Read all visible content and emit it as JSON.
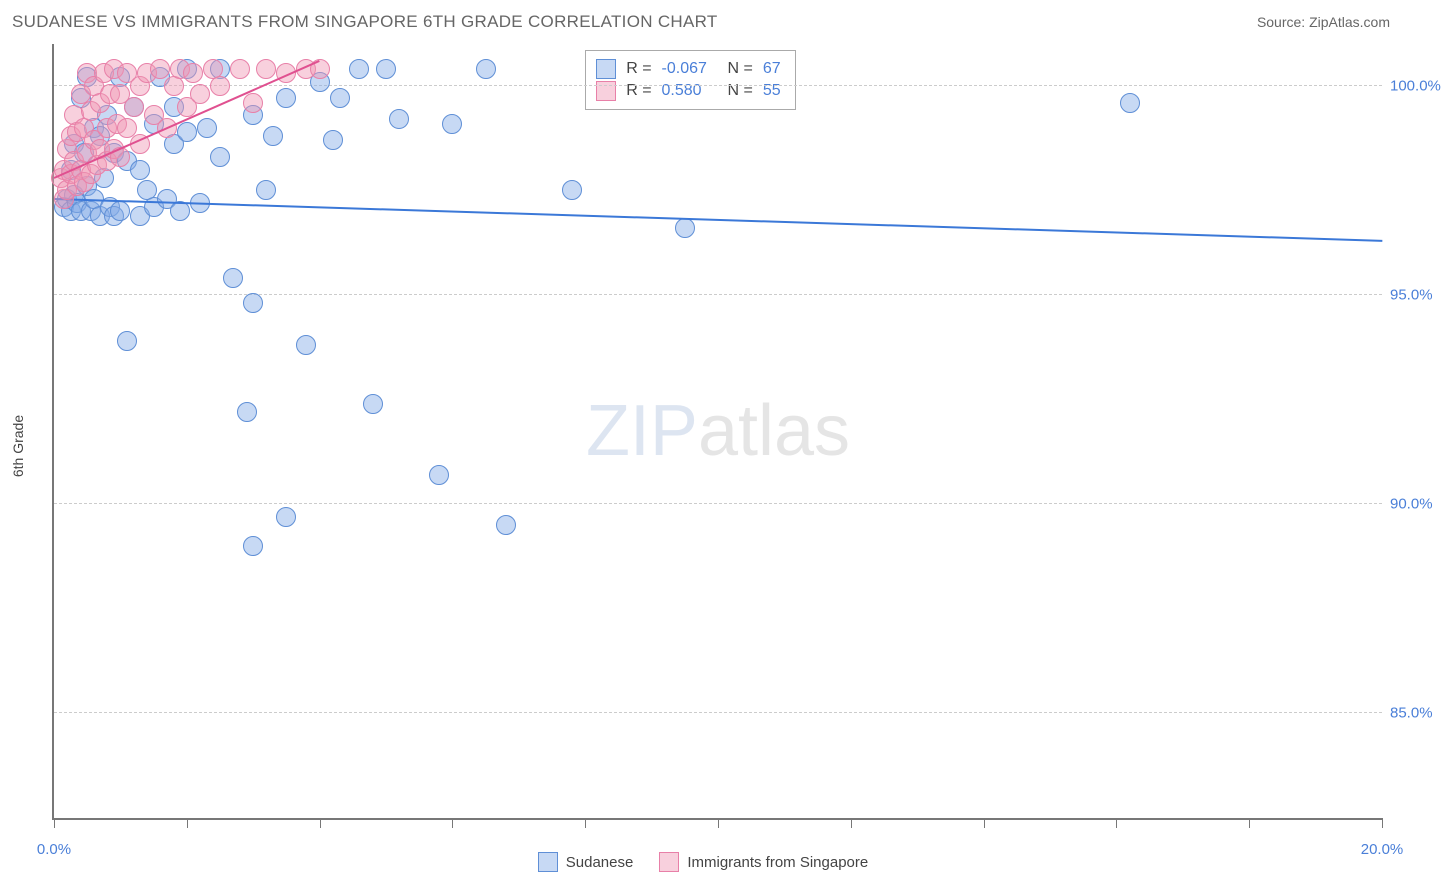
{
  "header": {
    "title": "SUDANESE VS IMMIGRANTS FROM SINGAPORE 6TH GRADE CORRELATION CHART",
    "source": "Source: ZipAtlas.com"
  },
  "chart": {
    "type": "scatter",
    "y_axis_title": "6th Grade",
    "watermark_a": "ZIP",
    "watermark_b": "atlas",
    "background_color": "#ffffff",
    "grid_color": "#cccccc",
    "axis_color": "#777777",
    "tick_label_color": "#4a7fd8",
    "xlim": [
      0,
      20
    ],
    "ylim": [
      82.5,
      101
    ],
    "x_ticks": [
      0,
      2,
      4,
      6,
      8,
      10,
      12,
      14,
      16,
      18,
      20
    ],
    "x_tick_labels": {
      "0": "0.0%",
      "20": "20.0%"
    },
    "y_ticks": [
      85,
      90,
      95,
      100
    ],
    "y_tick_labels": {
      "85": "85.0%",
      "90": "90.0%",
      "95": "95.0%",
      "100": "100.0%"
    },
    "series": [
      {
        "name": "Sudanese",
        "fill": "rgba(130,170,230,0.45)",
        "stroke": "#5f8fd6",
        "marker_radius": 10,
        "r_value": "-0.067",
        "n_value": "67",
        "trend": {
          "x1": 0,
          "y1": 97.3,
          "x2": 20,
          "y2": 96.3,
          "color": "#3b78d8",
          "width": 2
        },
        "points": [
          [
            0.15,
            97.1
          ],
          [
            0.2,
            97.3
          ],
          [
            0.25,
            98.0
          ],
          [
            0.25,
            97.0
          ],
          [
            0.3,
            97.4
          ],
          [
            0.3,
            98.6
          ],
          [
            0.35,
            97.2
          ],
          [
            0.4,
            99.7
          ],
          [
            0.4,
            97.0
          ],
          [
            0.45,
            98.4
          ],
          [
            0.5,
            97.6
          ],
          [
            0.5,
            100.2
          ],
          [
            0.55,
            97.0
          ],
          [
            0.6,
            99.0
          ],
          [
            0.6,
            97.3
          ],
          [
            0.7,
            98.8
          ],
          [
            0.7,
            96.9
          ],
          [
            0.75,
            97.8
          ],
          [
            0.8,
            99.3
          ],
          [
            0.85,
            97.1
          ],
          [
            0.9,
            98.4
          ],
          [
            0.9,
            96.9
          ],
          [
            1.0,
            97.0
          ],
          [
            1.0,
            100.2
          ],
          [
            1.1,
            93.9
          ],
          [
            1.1,
            98.2
          ],
          [
            1.2,
            99.5
          ],
          [
            1.3,
            96.9
          ],
          [
            1.3,
            98.0
          ],
          [
            1.4,
            97.5
          ],
          [
            1.5,
            99.1
          ],
          [
            1.5,
            97.1
          ],
          [
            1.6,
            100.2
          ],
          [
            1.7,
            97.3
          ],
          [
            1.8,
            98.6
          ],
          [
            1.8,
            99.5
          ],
          [
            1.9,
            97.0
          ],
          [
            2.0,
            98.9
          ],
          [
            2.0,
            100.4
          ],
          [
            2.2,
            97.2
          ],
          [
            2.3,
            99.0
          ],
          [
            2.5,
            98.3
          ],
          [
            2.5,
            100.4
          ],
          [
            2.7,
            95.4
          ],
          [
            2.9,
            92.2
          ],
          [
            3.0,
            94.8
          ],
          [
            3.0,
            99.3
          ],
          [
            3.0,
            89.0
          ],
          [
            3.2,
            97.5
          ],
          [
            3.3,
            98.8
          ],
          [
            3.5,
            99.7
          ],
          [
            3.5,
            89.7
          ],
          [
            3.8,
            93.8
          ],
          [
            4.0,
            100.1
          ],
          [
            4.2,
            98.7
          ],
          [
            4.3,
            99.7
          ],
          [
            4.6,
            100.4
          ],
          [
            4.8,
            92.4
          ],
          [
            5.0,
            100.4
          ],
          [
            5.2,
            99.2
          ],
          [
            5.8,
            90.7
          ],
          [
            6.0,
            99.1
          ],
          [
            6.5,
            100.4
          ],
          [
            6.8,
            89.5
          ],
          [
            7.8,
            97.5
          ],
          [
            9.5,
            96.6
          ],
          [
            16.2,
            99.6
          ]
        ]
      },
      {
        "name": "Immigrants from Singapore",
        "fill": "rgba(240,150,180,0.45)",
        "stroke": "#e880a8",
        "marker_radius": 10,
        "r_value": "0.580",
        "n_value": "55",
        "trend": {
          "x1": 0,
          "y1": 97.8,
          "x2": 4.0,
          "y2": 100.6,
          "color": "#e05090",
          "width": 2
        },
        "points": [
          [
            0.1,
            97.8
          ],
          [
            0.15,
            98.0
          ],
          [
            0.15,
            97.3
          ],
          [
            0.2,
            98.5
          ],
          [
            0.2,
            97.5
          ],
          [
            0.25,
            98.8
          ],
          [
            0.25,
            97.9
          ],
          [
            0.3,
            98.2
          ],
          [
            0.3,
            99.3
          ],
          [
            0.35,
            97.6
          ],
          [
            0.35,
            98.9
          ],
          [
            0.4,
            98.0
          ],
          [
            0.4,
            99.8
          ],
          [
            0.45,
            97.7
          ],
          [
            0.45,
            99.0
          ],
          [
            0.5,
            98.4
          ],
          [
            0.5,
            100.3
          ],
          [
            0.55,
            97.9
          ],
          [
            0.55,
            99.4
          ],
          [
            0.6,
            98.7
          ],
          [
            0.6,
            100.0
          ],
          [
            0.65,
            98.1
          ],
          [
            0.7,
            99.6
          ],
          [
            0.7,
            98.5
          ],
          [
            0.75,
            100.3
          ],
          [
            0.8,
            98.2
          ],
          [
            0.8,
            99.0
          ],
          [
            0.85,
            99.8
          ],
          [
            0.9,
            98.5
          ],
          [
            0.9,
            100.4
          ],
          [
            0.95,
            99.1
          ],
          [
            1.0,
            99.8
          ],
          [
            1.0,
            98.3
          ],
          [
            1.1,
            100.3
          ],
          [
            1.1,
            99.0
          ],
          [
            1.2,
            99.5
          ],
          [
            1.3,
            100.0
          ],
          [
            1.3,
            98.6
          ],
          [
            1.4,
            100.3
          ],
          [
            1.5,
            99.3
          ],
          [
            1.6,
            100.4
          ],
          [
            1.7,
            99.0
          ],
          [
            1.8,
            100.0
          ],
          [
            1.9,
            100.4
          ],
          [
            2.0,
            99.5
          ],
          [
            2.1,
            100.3
          ],
          [
            2.2,
            99.8
          ],
          [
            2.4,
            100.4
          ],
          [
            2.5,
            100.0
          ],
          [
            2.8,
            100.4
          ],
          [
            3.0,
            99.6
          ],
          [
            3.2,
            100.4
          ],
          [
            3.5,
            100.3
          ],
          [
            3.8,
            100.4
          ],
          [
            4.0,
            100.4
          ]
        ]
      }
    ],
    "legend_box": {
      "r_label": "R =",
      "n_label": "N ="
    },
    "bottom_legend": {
      "items": [
        "Sudanese",
        "Immigrants from Singapore"
      ]
    }
  }
}
